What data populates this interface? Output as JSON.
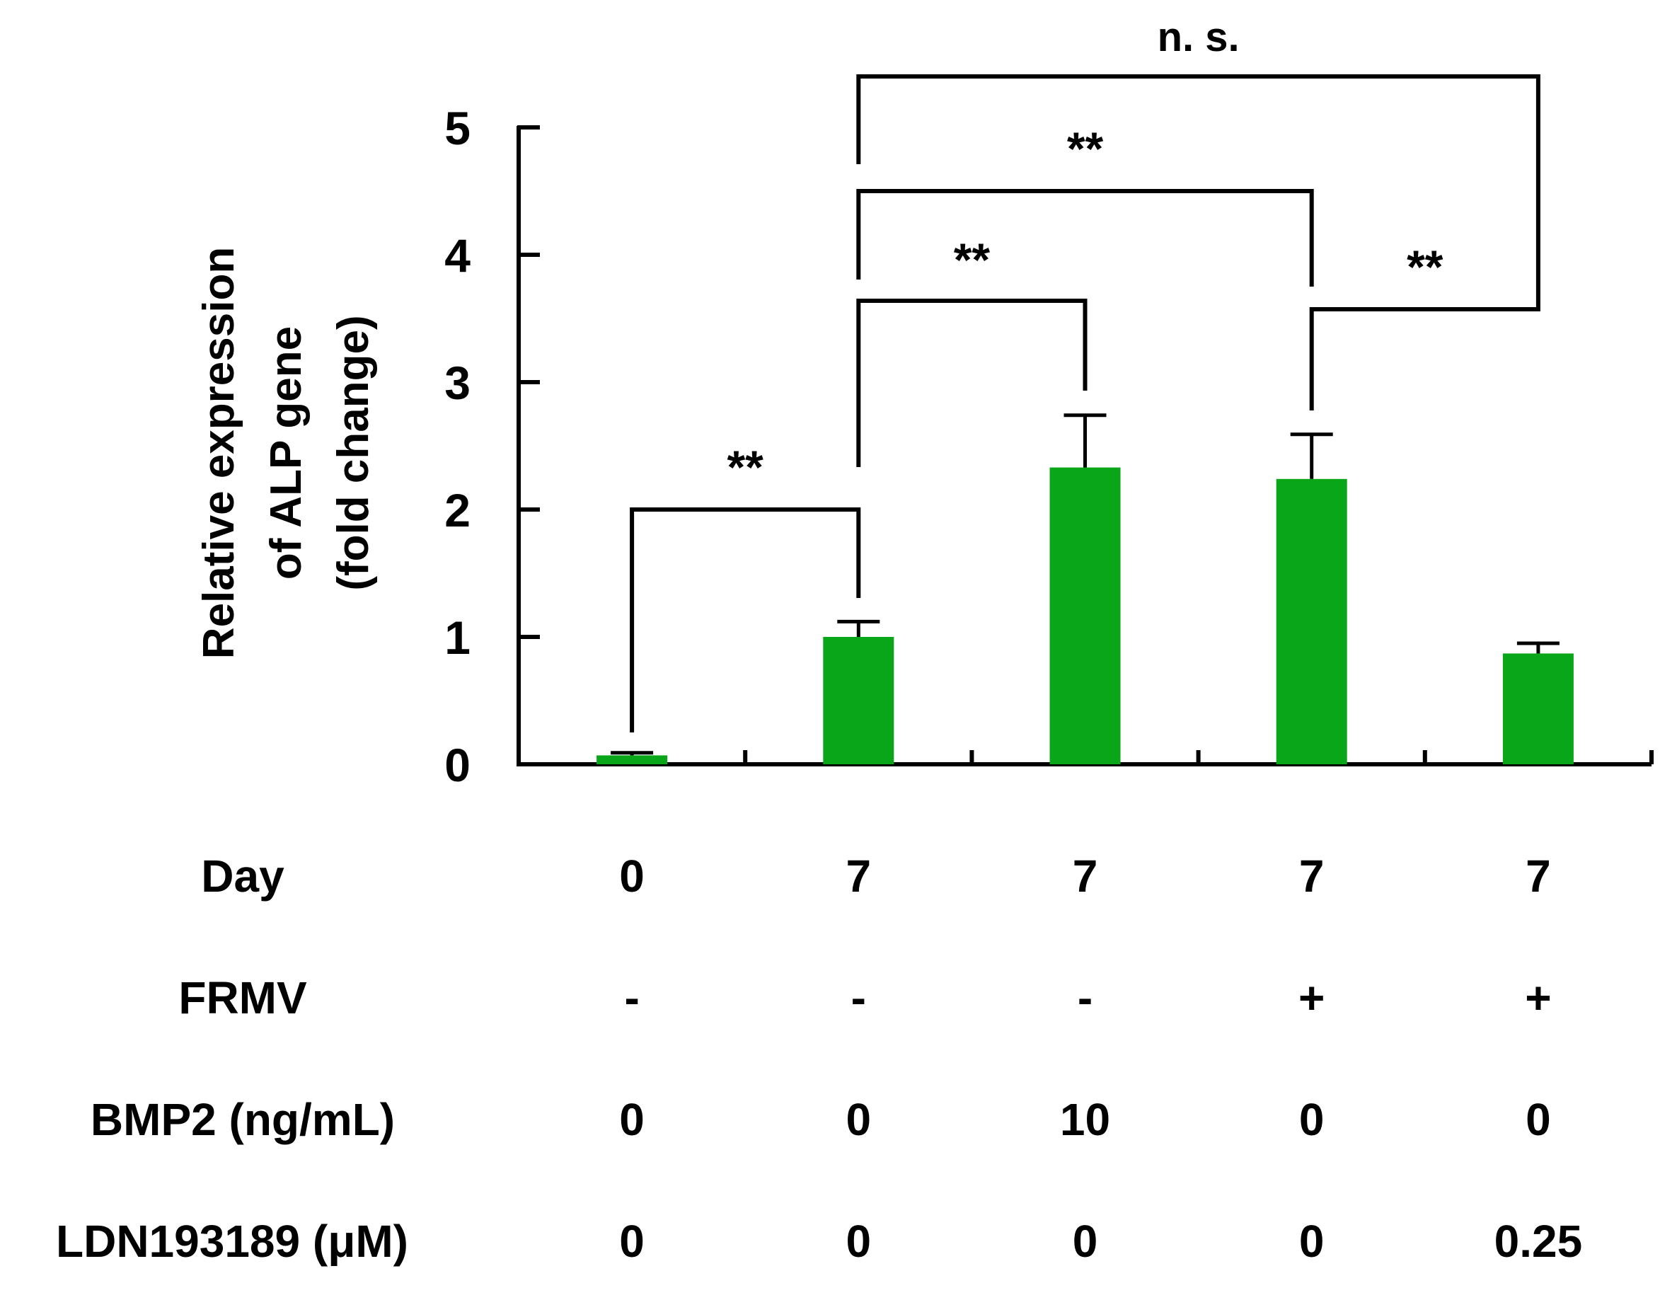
{
  "chart_data": {
    "type": "bar",
    "ylabel_lines": [
      "Relative expression",
      "of ALP gene",
      "(fold change)"
    ],
    "ylim": [
      0,
      5
    ],
    "yticks": [
      0,
      1,
      2,
      3,
      4,
      5
    ],
    "bar_color": "#0aa619",
    "groups": 5,
    "values": [
      0.07,
      1.0,
      2.33,
      2.24,
      0.87
    ],
    "errors": [
      0.02,
      0.12,
      0.41,
      0.35,
      0.08
    ],
    "conditions": [
      {
        "label": "Day",
        "values": [
          "0",
          "7",
          "7",
          "7",
          "7"
        ]
      },
      {
        "label": "FRMV",
        "values": [
          "-",
          "-",
          "-",
          "+",
          "+"
        ]
      },
      {
        "label": "BMP2 (ng/mL)",
        "values": [
          "0",
          "0",
          "10",
          "0",
          "0"
        ]
      },
      {
        "label": "LDN193189 (μM)",
        "values": [
          "0",
          "0",
          "0",
          "0",
          "0.25"
        ]
      }
    ],
    "significance": [
      {
        "from": 0,
        "to": 1,
        "label": "**"
      },
      {
        "from": 1,
        "to": 2,
        "label": "**"
      },
      {
        "from": 1,
        "to": 3,
        "label": "**"
      },
      {
        "from": 3,
        "to": 4,
        "label": "**"
      },
      {
        "from": 1,
        "to": 4,
        "label": "n. s."
      }
    ]
  }
}
